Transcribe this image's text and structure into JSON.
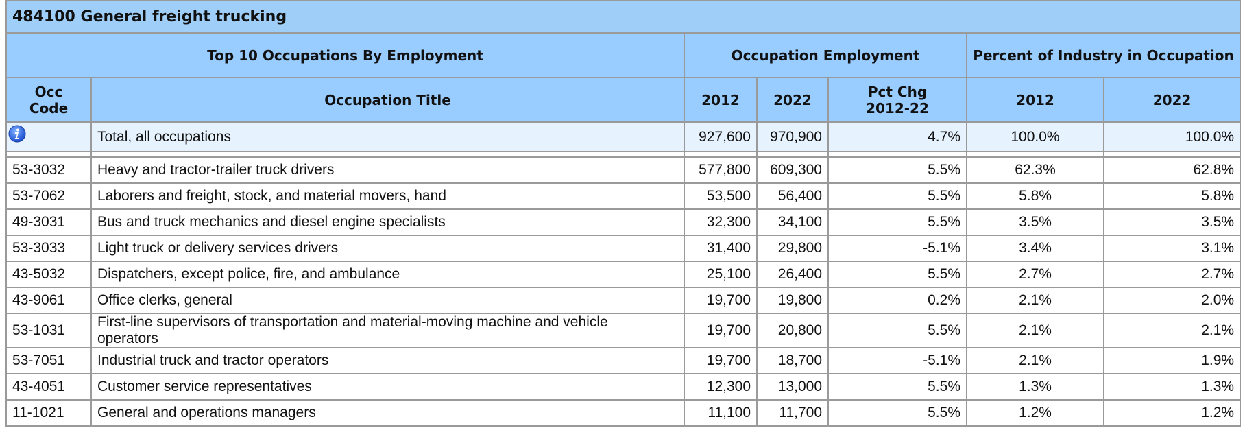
{
  "title": "484100 General freight trucking",
  "table": {
    "group_headers": [
      "Top 10 Occupations By Employment",
      "Occupation Employment",
      "Percent of Industry in Occupation"
    ],
    "headers": [
      "Occ Code",
      "Occupation Title",
      "2012",
      "2022",
      "Pct Chg 2012-22",
      "2012",
      "2022"
    ],
    "total": [
      "Total, all occupations",
      "927,600",
      "970,900",
      "4.7%",
      "100.0%",
      "100.0%"
    ],
    "rows": [
      [
        "53-3032",
        "Heavy and tractor-trailer truck drivers",
        "577,800",
        "609,300",
        "5.5%",
        "62.3%",
        "62.8%"
      ],
      [
        "53-7062",
        "Laborers and freight, stock, and material movers, hand",
        "53,500",
        "56,400",
        "5.5%",
        "5.8%",
        "5.8%"
      ],
      [
        "49-3031",
        "Bus and truck mechanics and diesel engine specialists",
        "32,300",
        "34,100",
        "5.5%",
        "3.5%",
        "3.5%"
      ],
      [
        "53-3033",
        "Light truck or delivery services drivers",
        "31,400",
        "29,800",
        "-5.1%",
        "3.4%",
        "3.1%"
      ],
      [
        "43-5032",
        "Dispatchers, except police, fire, and ambulance",
        "25,100",
        "26,400",
        "5.5%",
        "2.7%",
        "2.7%"
      ],
      [
        "43-9061",
        "Office clerks, general",
        "19,700",
        "19,800",
        "0.2%",
        "2.1%",
        "2.0%"
      ],
      [
        "53-1031",
        "First-line supervisors of transportation and material-moving machine and vehicle operators",
        "19,700",
        "20,800",
        "5.5%",
        "2.1%",
        "2.1%"
      ],
      [
        "53-7051",
        "Industrial truck and tractor operators",
        "19,700",
        "18,700",
        "-5.1%",
        "2.1%",
        "1.9%"
      ],
      [
        "43-4051",
        "Customer service representatives",
        "12,300",
        "13,000",
        "5.5%",
        "1.3%",
        "1.3%"
      ],
      [
        "11-1021",
        "General and operations managers",
        "11,100",
        "11,700",
        "5.5%",
        "1.2%",
        "1.2%"
      ]
    ]
  }
}
